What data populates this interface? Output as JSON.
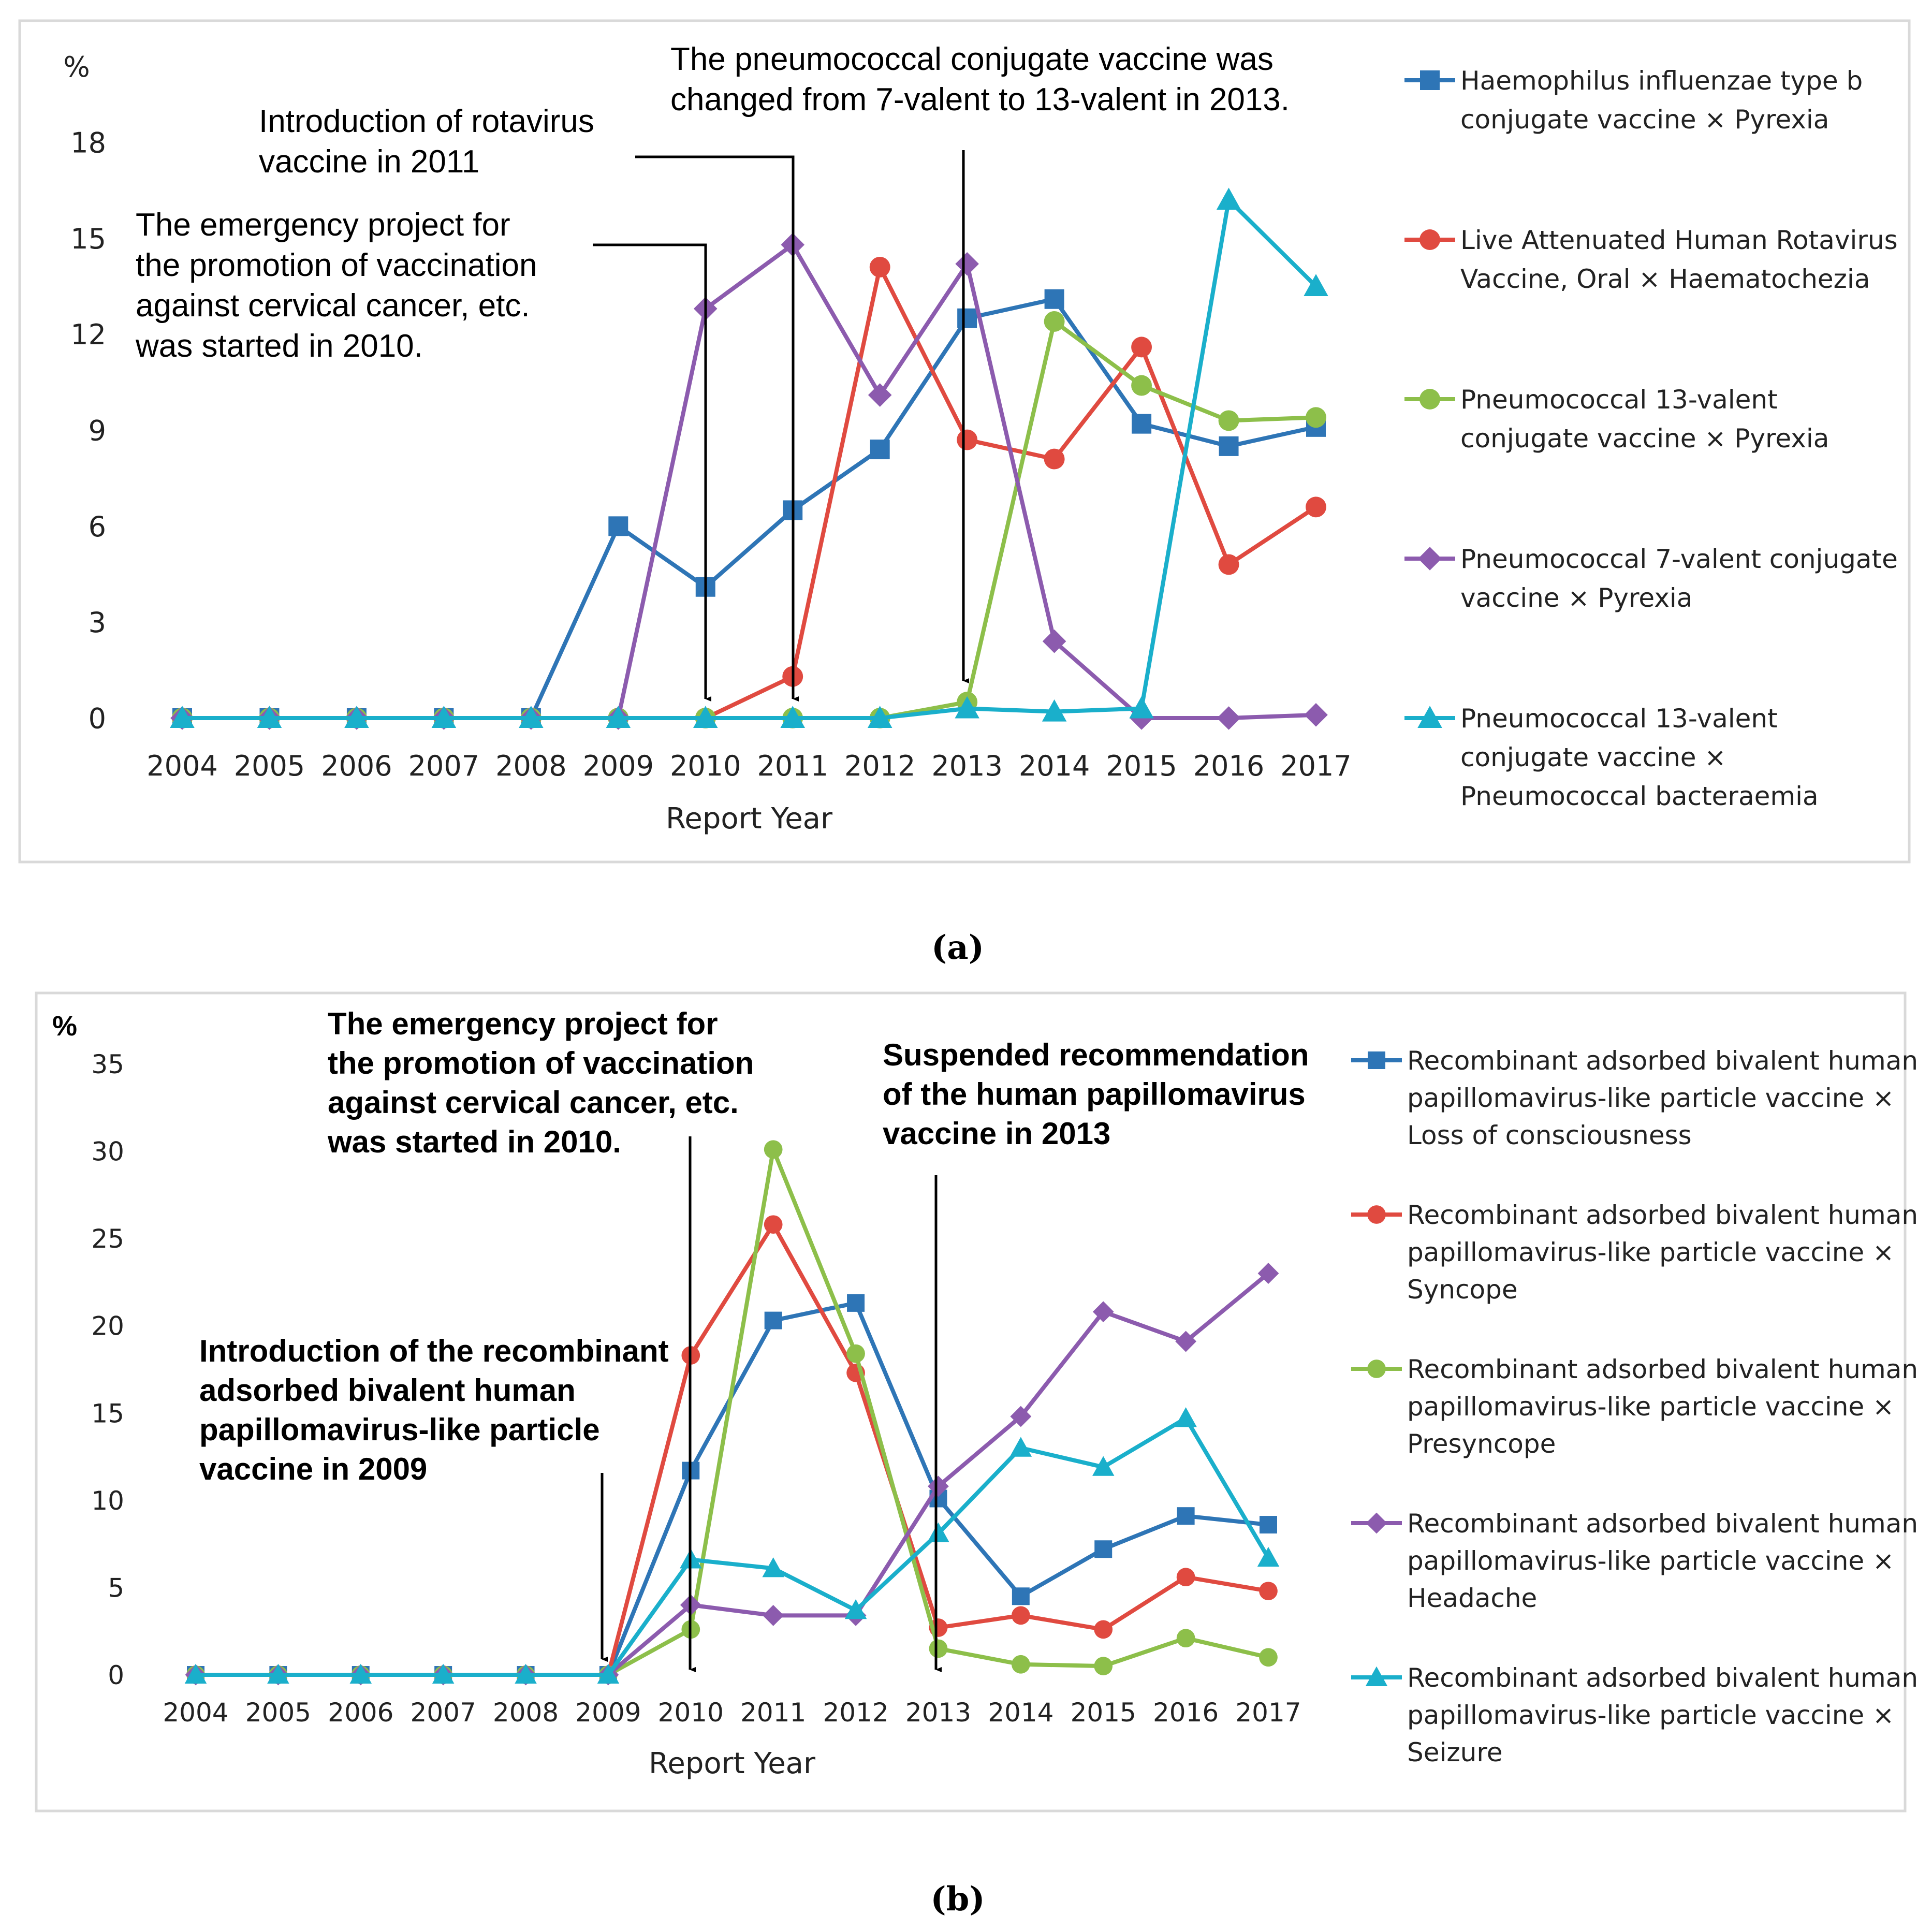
{
  "captions": [
    "(a)",
    "(b)"
  ],
  "chart_data": [
    {
      "type": "line",
      "panel": "(a)",
      "ylabel": "%",
      "xlabel": "Report Year",
      "ylim": [
        0,
        18
      ],
      "yticks": [
        0,
        3,
        6,
        9,
        12,
        15,
        18
      ],
      "categories": [
        "2004",
        "2005",
        "2006",
        "2007",
        "2008",
        "2009",
        "2010",
        "2011",
        "2012",
        "2013",
        "2014",
        "2015",
        "2016",
        "2017"
      ],
      "series": [
        {
          "name": "Haemophilus influenzae type b conjugate vaccine × Pyrexia",
          "legend_lines": [
            "Haemophilus influenzae type b",
            "conjugate vaccine × Pyrexia"
          ],
          "color": "#2E75B6",
          "marker": "square",
          "values": [
            0,
            0,
            0,
            0,
            0,
            6.0,
            4.1,
            6.5,
            8.4,
            12.5,
            13.1,
            9.2,
            8.5,
            9.1
          ]
        },
        {
          "name": "Live Attenuated Human Rotavirus Vaccine, Oral × Haematochezia",
          "legend_lines": [
            "Live Attenuated Human Rotavirus",
            "Vaccine, Oral × Haematochezia"
          ],
          "color": "#E04A40",
          "marker": "circle",
          "values": [
            0,
            0,
            0,
            0,
            0,
            0,
            0,
            1.3,
            14.1,
            8.7,
            8.1,
            11.6,
            4.8,
            6.6
          ]
        },
        {
          "name": "Pneumococcal 13-valent conjugate vaccine × Pyrexia",
          "legend_lines": [
            "Pneumococcal 13-valent",
            "conjugate vaccine × Pyrexia"
          ],
          "color": "#8DBF4A",
          "marker": "circle",
          "values": [
            0,
            0,
            0,
            0,
            0,
            0,
            0,
            0,
            0,
            0.5,
            12.4,
            10.4,
            9.3,
            9.4
          ]
        },
        {
          "name": "Pneumococcal 7-valent conjugate vaccine × Pyrexia",
          "legend_lines": [
            "Pneumococcal 7-valent conjugate",
            "vaccine × Pyrexia"
          ],
          "color": "#8C5BAE",
          "marker": "diamond",
          "values": [
            0,
            0,
            0,
            0,
            0,
            0,
            12.8,
            14.8,
            10.1,
            14.2,
            2.4,
            0,
            0,
            0.1
          ]
        },
        {
          "name": "Pneumococcal 13-valent conjugate vaccine × Pneumococcal bacteraemia",
          "legend_lines": [
            "Pneumococcal 13-valent",
            "conjugate vaccine ×",
            "Pneumococcal bacteraemia"
          ],
          "color": "#1AAFCB",
          "marker": "triangle",
          "values": [
            0,
            0,
            0,
            0,
            0,
            0,
            0,
            0,
            0,
            0.3,
            0.2,
            0.3,
            16.2,
            13.5
          ]
        }
      ],
      "annotations": [
        {
          "text_lines": [
            "The emergency project for",
            "the promotion of vaccination",
            "against cervical cancer, etc.",
            "was started in 2010."
          ],
          "points_to": "2010"
        },
        {
          "text_lines": [
            "Introduction of rotavirus",
            "vaccine in 2011"
          ],
          "points_to": "2011"
        },
        {
          "text_lines": [
            "The pneumococcal conjugate vaccine was",
            "changed from 7-valent to 13-valent in 2013."
          ],
          "points_to": "2013"
        }
      ]
    },
    {
      "type": "line",
      "panel": "(b)",
      "ylabel": "%",
      "xlabel": "Report Year",
      "ylim": [
        0,
        35
      ],
      "yticks": [
        0,
        5,
        10,
        15,
        20,
        25,
        30,
        35
      ],
      "categories": [
        "2004",
        "2005",
        "2006",
        "2007",
        "2008",
        "2009",
        "2010",
        "2011",
        "2012",
        "2013",
        "2014",
        "2015",
        "2016",
        "2017"
      ],
      "series": [
        {
          "name": "Recombinant adsorbed bivalent human papillomavirus-like particle vaccine × Loss of consciousness",
          "legend_lines": [
            "Recombinant adsorbed bivalent human",
            "papillomavirus-like particle vaccine ×",
            "Loss of consciousness"
          ],
          "color": "#2E75B6",
          "marker": "square",
          "values": [
            0,
            0,
            0,
            0,
            0,
            0,
            11.7,
            20.3,
            21.3,
            10.1,
            4.5,
            7.2,
            9.1,
            8.6
          ]
        },
        {
          "name": "Recombinant adsorbed bivalent human papillomavirus-like particle vaccine × Syncope",
          "legend_lines": [
            "Recombinant adsorbed bivalent human",
            "papillomavirus-like particle vaccine ×",
            "Syncope"
          ],
          "color": "#E04A40",
          "marker": "circle",
          "values": [
            0,
            0,
            0,
            0,
            0,
            0,
            18.3,
            25.8,
            17.3,
            2.7,
            3.4,
            2.6,
            5.6,
            4.8
          ]
        },
        {
          "name": "Recombinant adsorbed bivalent human papillomavirus-like particle vaccine × Presyncope",
          "legend_lines": [
            "Recombinant adsorbed bivalent human",
            "papillomavirus-like particle vaccine ×",
            "Presyncope"
          ],
          "color": "#8DBF4A",
          "marker": "circle",
          "values": [
            0,
            0,
            0,
            0,
            0,
            0,
            2.6,
            30.1,
            18.4,
            1.5,
            0.6,
            0.5,
            2.1,
            1.0
          ]
        },
        {
          "name": "Recombinant adsorbed bivalent human papillomavirus-like particle vaccine × Headache",
          "legend_lines": [
            "Recombinant adsorbed bivalent human",
            "papillomavirus-like particle vaccine ×",
            "Headache"
          ],
          "color": "#8C5BAE",
          "marker": "diamond",
          "values": [
            0,
            0,
            0,
            0,
            0,
            0,
            4.0,
            3.4,
            3.4,
            10.8,
            14.8,
            20.8,
            19.1,
            23.0
          ]
        },
        {
          "name": "Recombinant adsorbed bivalent human papillomavirus-like particle vaccine × Seizure",
          "legend_lines": [
            "Recombinant adsorbed bivalent human",
            "papillomavirus-like particle vaccine ×",
            "Seizure"
          ],
          "color": "#1AAFCB",
          "marker": "triangle",
          "values": [
            0,
            0,
            0,
            0,
            0,
            0,
            6.6,
            6.1,
            3.7,
            8.1,
            13.0,
            11.9,
            14.7,
            6.7
          ]
        }
      ],
      "annotations": [
        {
          "text_lines": [
            "Introduction of the recombinant",
            "adsorbed bivalent human",
            "papillomavirus-like particle",
            "vaccine in 2009"
          ],
          "points_to": "2009"
        },
        {
          "text_lines": [
            "The emergency project for",
            "the promotion of vaccination",
            "against cervical cancer, etc.",
            "was started in 2010."
          ],
          "points_to": "2010"
        },
        {
          "text_lines": [
            "Suspended recommendation",
            "of the human papillomavirus",
            "vaccine in 2013"
          ],
          "points_to": "2013"
        }
      ]
    }
  ]
}
